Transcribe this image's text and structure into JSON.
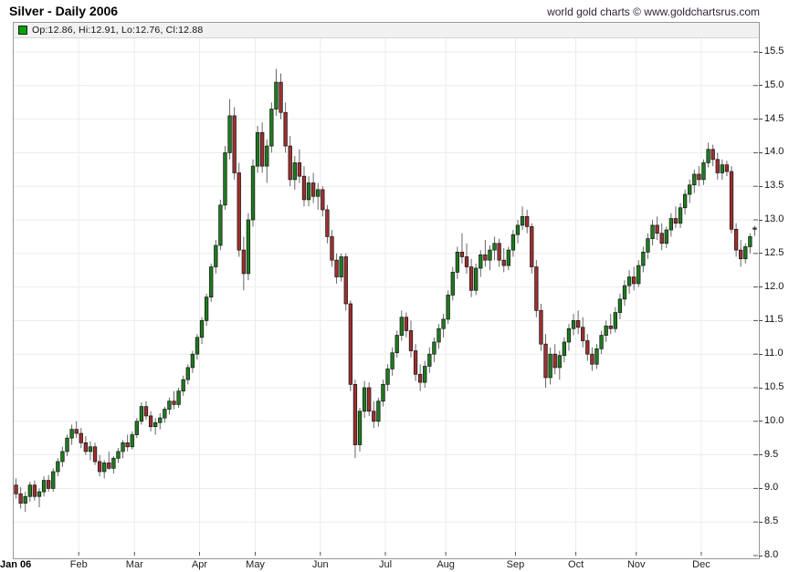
{
  "header": {
    "title": "Silver - Daily 2006",
    "source": "world gold charts © www.goldchartsrus.com"
  },
  "legend": {
    "swatch_color": "#00a400",
    "text": "Op:12.86, Hi:12.91, Lo:12.76, Cl:12.88"
  },
  "chart_data": {
    "type": "candlestick",
    "title": "Silver - Daily 2006",
    "ylim": [
      8.0,
      15.5
    ],
    "y_tick_step": 0.5,
    "y_ticks": [
      8.0,
      8.5,
      9.0,
      9.5,
      10.0,
      10.5,
      11.0,
      11.5,
      12.0,
      12.5,
      13.0,
      13.5,
      14.0,
      14.5,
      15.0,
      15.5
    ],
    "grid": true,
    "legend_position": "top-left",
    "axis_side": "right",
    "colors": {
      "up": "#1e7b1e",
      "down": "#9e2f2f",
      "wick": "#666666",
      "body_border": "#141414",
      "grid": "#ebebeb",
      "frame": "#999999"
    },
    "months": [
      {
        "label": "Jan 06",
        "index": 0
      },
      {
        "label": "Feb",
        "index": 14
      },
      {
        "label": "Mar",
        "index": 26
      },
      {
        "label": "Apr",
        "index": 40
      },
      {
        "label": "May",
        "index": 52
      },
      {
        "label": "Jun",
        "index": 66
      },
      {
        "label": "Jul",
        "index": 80
      },
      {
        "label": "Aug",
        "index": 93
      },
      {
        "label": "Sep",
        "index": 108
      },
      {
        "label": "Oct",
        "index": 121
      },
      {
        "label": "Nov",
        "index": 134
      },
      {
        "label": "Dec",
        "index": 148
      }
    ],
    "last_bar": {
      "open": 12.86,
      "high": 12.91,
      "low": 12.76,
      "close": 12.88
    },
    "ohlc": [
      [
        9.05,
        9.15,
        8.85,
        8.92
      ],
      [
        8.92,
        9.02,
        8.7,
        8.78
      ],
      [
        8.78,
        8.95,
        8.65,
        8.88
      ],
      [
        8.88,
        9.1,
        8.8,
        9.05
      ],
      [
        9.05,
        9.12,
        8.82,
        8.88
      ],
      [
        8.88,
        9.0,
        8.72,
        8.95
      ],
      [
        8.95,
        9.18,
        8.88,
        9.12
      ],
      [
        9.12,
        9.2,
        8.95,
        9.0
      ],
      [
        9.0,
        9.3,
        8.95,
        9.25
      ],
      [
        9.25,
        9.45,
        9.18,
        9.4
      ],
      [
        9.4,
        9.62,
        9.32,
        9.55
      ],
      [
        9.55,
        9.8,
        9.48,
        9.75
      ],
      [
        9.75,
        9.95,
        9.65,
        9.88
      ],
      [
        9.88,
        10.0,
        9.75,
        9.82
      ],
      [
        9.82,
        9.9,
        9.6,
        9.68
      ],
      [
        9.68,
        9.78,
        9.5,
        9.55
      ],
      [
        9.55,
        9.7,
        9.42,
        9.62
      ],
      [
        9.62,
        9.68,
        9.35,
        9.4
      ],
      [
        9.4,
        9.5,
        9.18,
        9.25
      ],
      [
        9.25,
        9.42,
        9.15,
        9.38
      ],
      [
        9.38,
        9.55,
        9.28,
        9.3
      ],
      [
        9.3,
        9.48,
        9.22,
        9.45
      ],
      [
        9.45,
        9.6,
        9.38,
        9.55
      ],
      [
        9.55,
        9.72,
        9.45,
        9.68
      ],
      [
        9.68,
        9.8,
        9.55,
        9.62
      ],
      [
        9.62,
        9.85,
        9.58,
        9.8
      ],
      [
        9.8,
        10.05,
        9.75,
        10.0
      ],
      [
        10.0,
        10.28,
        9.95,
        10.22
      ],
      [
        10.22,
        10.3,
        10.02,
        10.08
      ],
      [
        10.08,
        10.15,
        9.85,
        9.92
      ],
      [
        9.92,
        10.05,
        9.8,
        9.98
      ],
      [
        9.98,
        10.12,
        9.88,
        10.05
      ],
      [
        10.05,
        10.22,
        9.98,
        10.18
      ],
      [
        10.18,
        10.35,
        10.1,
        10.3
      ],
      [
        10.3,
        10.45,
        10.18,
        10.25
      ],
      [
        10.25,
        10.5,
        10.2,
        10.45
      ],
      [
        10.45,
        10.68,
        10.38,
        10.62
      ],
      [
        10.62,
        10.85,
        10.55,
        10.8
      ],
      [
        10.8,
        11.05,
        10.72,
        11.0
      ],
      [
        11.0,
        11.3,
        10.92,
        11.25
      ],
      [
        11.25,
        11.55,
        11.15,
        11.5
      ],
      [
        11.5,
        11.9,
        11.42,
        11.85
      ],
      [
        11.85,
        12.35,
        11.78,
        12.3
      ],
      [
        12.3,
        12.7,
        12.2,
        12.62
      ],
      [
        12.62,
        13.3,
        12.55,
        13.22
      ],
      [
        13.22,
        14.1,
        13.15,
        14.0
      ],
      [
        14.0,
        14.8,
        13.9,
        14.55
      ],
      [
        14.55,
        14.68,
        13.6,
        13.7
      ],
      [
        13.7,
        13.85,
        12.45,
        12.55
      ],
      [
        12.55,
        12.75,
        11.95,
        12.2
      ],
      [
        12.2,
        13.1,
        12.1,
        13.0
      ],
      [
        13.0,
        13.9,
        12.9,
        13.8
      ],
      [
        13.8,
        14.4,
        13.7,
        14.3
      ],
      [
        14.3,
        14.45,
        13.7,
        13.8
      ],
      [
        13.8,
        14.2,
        13.55,
        14.1
      ],
      [
        14.1,
        14.75,
        14.0,
        14.65
      ],
      [
        14.65,
        15.25,
        14.55,
        15.05
      ],
      [
        15.05,
        15.18,
        14.5,
        14.6
      ],
      [
        14.6,
        14.75,
        14.0,
        14.1
      ],
      [
        14.1,
        14.25,
        13.5,
        13.6
      ],
      [
        13.6,
        13.95,
        13.45,
        13.85
      ],
      [
        13.85,
        14.05,
        13.55,
        13.65
      ],
      [
        13.65,
        13.8,
        13.2,
        13.3
      ],
      [
        13.3,
        13.65,
        13.2,
        13.55
      ],
      [
        13.55,
        13.7,
        13.25,
        13.35
      ],
      [
        13.35,
        13.55,
        13.15,
        13.45
      ],
      [
        13.45,
        13.5,
        13.05,
        13.15
      ],
      [
        13.15,
        13.22,
        12.65,
        12.75
      ],
      [
        12.75,
        12.85,
        12.3,
        12.4
      ],
      [
        12.4,
        12.5,
        12.05,
        12.15
      ],
      [
        12.15,
        12.5,
        12.08,
        12.45
      ],
      [
        12.45,
        12.5,
        11.65,
        11.75
      ],
      [
        11.75,
        11.8,
        10.45,
        10.55
      ],
      [
        10.55,
        10.62,
        9.45,
        9.65
      ],
      [
        9.65,
        10.2,
        9.55,
        10.15
      ],
      [
        10.15,
        10.6,
        10.05,
        10.5
      ],
      [
        10.5,
        10.58,
        10.08,
        10.15
      ],
      [
        10.15,
        10.3,
        9.9,
        10.0
      ],
      [
        10.0,
        10.35,
        9.92,
        10.3
      ],
      [
        10.3,
        10.62,
        10.22,
        10.55
      ],
      [
        10.55,
        10.85,
        10.45,
        10.78
      ],
      [
        10.78,
        11.1,
        10.68,
        11.02
      ],
      [
        11.02,
        11.35,
        10.95,
        11.28
      ],
      [
        11.28,
        11.65,
        11.2,
        11.55
      ],
      [
        11.55,
        11.62,
        11.25,
        11.35
      ],
      [
        11.35,
        11.5,
        10.95,
        11.05
      ],
      [
        11.05,
        11.15,
        10.6,
        10.7
      ],
      [
        10.7,
        10.85,
        10.45,
        10.58
      ],
      [
        10.58,
        10.9,
        10.5,
        10.82
      ],
      [
        10.82,
        11.1,
        10.72,
        11.0
      ],
      [
        11.0,
        11.25,
        10.88,
        11.18
      ],
      [
        11.18,
        11.45,
        11.08,
        11.38
      ],
      [
        11.38,
        11.6,
        11.25,
        11.52
      ],
      [
        11.52,
        11.95,
        11.45,
        11.88
      ],
      [
        11.88,
        12.3,
        11.8,
        12.22
      ],
      [
        12.22,
        12.6,
        12.12,
        12.52
      ],
      [
        12.52,
        12.8,
        12.35,
        12.45
      ],
      [
        12.45,
        12.65,
        12.2,
        12.3
      ],
      [
        12.3,
        12.42,
        11.85,
        11.95
      ],
      [
        11.95,
        12.35,
        11.88,
        12.28
      ],
      [
        12.28,
        12.55,
        12.15,
        12.48
      ],
      [
        12.48,
        12.7,
        12.3,
        12.4
      ],
      [
        12.4,
        12.62,
        12.25,
        12.55
      ],
      [
        12.55,
        12.75,
        12.4,
        12.65
      ],
      [
        12.65,
        12.72,
        12.3,
        12.4
      ],
      [
        12.4,
        12.58,
        12.22,
        12.32
      ],
      [
        12.32,
        12.6,
        12.25,
        12.55
      ],
      [
        12.55,
        12.85,
        12.45,
        12.78
      ],
      [
        12.78,
        13.0,
        12.65,
        12.92
      ],
      [
        12.92,
        13.2,
        12.85,
        13.05
      ],
      [
        13.05,
        13.15,
        12.8,
        12.9
      ],
      [
        12.9,
        12.95,
        12.2,
        12.3
      ],
      [
        12.3,
        12.4,
        11.55,
        11.65
      ],
      [
        11.65,
        11.75,
        11.05,
        11.15
      ],
      [
        11.15,
        11.3,
        10.5,
        10.65
      ],
      [
        10.65,
        11.1,
        10.55,
        11.0
      ],
      [
        11.0,
        11.15,
        10.7,
        10.8
      ],
      [
        10.8,
        11.05,
        10.62,
        10.98
      ],
      [
        10.98,
        11.25,
        10.88,
        11.18
      ],
      [
        11.18,
        11.45,
        11.05,
        11.38
      ],
      [
        11.38,
        11.6,
        11.28,
        11.5
      ],
      [
        11.5,
        11.65,
        11.3,
        11.4
      ],
      [
        11.4,
        11.55,
        11.1,
        11.2
      ],
      [
        11.2,
        11.3,
        10.9,
        11.0
      ],
      [
        11.0,
        11.1,
        10.75,
        10.85
      ],
      [
        10.85,
        11.15,
        10.78,
        11.08
      ],
      [
        11.08,
        11.35,
        11.0,
        11.28
      ],
      [
        11.28,
        11.5,
        11.18,
        11.42
      ],
      [
        11.42,
        11.6,
        11.3,
        11.38
      ],
      [
        11.38,
        11.7,
        11.32,
        11.62
      ],
      [
        11.62,
        11.9,
        11.52,
        11.82
      ],
      [
        11.82,
        12.1,
        11.72,
        12.02
      ],
      [
        12.02,
        12.25,
        11.9,
        12.15
      ],
      [
        12.15,
        12.3,
        11.95,
        12.05
      ],
      [
        12.05,
        12.4,
        12.0,
        12.32
      ],
      [
        12.32,
        12.6,
        12.22,
        12.52
      ],
      [
        12.52,
        12.8,
        12.42,
        12.72
      ],
      [
        12.72,
        13.0,
        12.62,
        12.92
      ],
      [
        12.92,
        13.05,
        12.7,
        12.8
      ],
      [
        12.8,
        12.95,
        12.55,
        12.65
      ],
      [
        12.65,
        12.9,
        12.58,
        12.85
      ],
      [
        12.85,
        13.1,
        12.75,
        13.02
      ],
      [
        13.02,
        13.2,
        12.88,
        12.95
      ],
      [
        12.95,
        13.25,
        12.88,
        13.18
      ],
      [
        13.18,
        13.45,
        13.08,
        13.38
      ],
      [
        13.38,
        13.6,
        13.25,
        13.52
      ],
      [
        13.52,
        13.75,
        13.4,
        13.68
      ],
      [
        13.68,
        13.8,
        13.5,
        13.6
      ],
      [
        13.6,
        13.9,
        13.52,
        13.85
      ],
      [
        13.85,
        14.15,
        13.78,
        14.05
      ],
      [
        14.05,
        14.12,
        13.8,
        13.9
      ],
      [
        13.9,
        14.0,
        13.6,
        13.7
      ],
      [
        13.7,
        13.9,
        13.6,
        13.82
      ],
      [
        13.82,
        13.88,
        13.65,
        13.72
      ],
      [
        13.72,
        13.8,
        12.8,
        12.86
      ],
      [
        12.86,
        12.95,
        12.45,
        12.55
      ],
      [
        12.55,
        12.7,
        12.3,
        12.42
      ],
      [
        12.42,
        12.65,
        12.35,
        12.6
      ],
      [
        12.6,
        12.8,
        12.5,
        12.75
      ],
      [
        12.86,
        12.91,
        12.76,
        12.88
      ]
    ]
  }
}
